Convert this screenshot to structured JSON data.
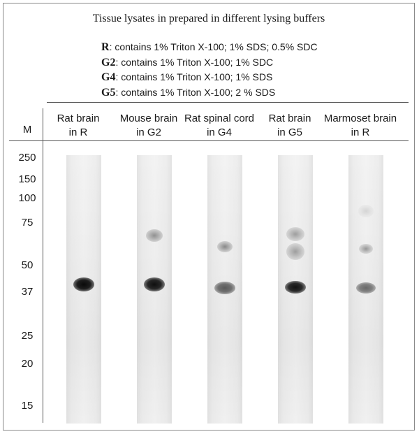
{
  "title": "Tissue lysates in prepared in different lysing buffers",
  "buffers": [
    {
      "key": "R",
      "desc": ": contains 1% Triton X-100; 1% SDS; 0.5% SDC"
    },
    {
      "key": "G2",
      "desc": ": contains 1% Triton X-100; 1% SDC"
    },
    {
      "key": "G4",
      "desc": ": contains 1% Triton X-100; 1% SDS"
    },
    {
      "key": "G5",
      "desc": ": contains 1% Triton X-100; 2 % SDS"
    }
  ],
  "marker_header": "M",
  "markers": [
    "250",
    "150",
    "100",
    "75",
    "50",
    "37",
    "25",
    "20",
    "15"
  ],
  "lanes": [
    {
      "line1": "Rat brain",
      "line2": "in R"
    },
    {
      "line1": "Mouse brain",
      "line2": "in G2"
    },
    {
      "line1": "Rat spinal cord",
      "line2": "in G4"
    },
    {
      "line1": "Rat brain",
      "line2": "in G5"
    },
    {
      "line1": "Marmoset brain",
      "line2": "in R"
    }
  ]
}
